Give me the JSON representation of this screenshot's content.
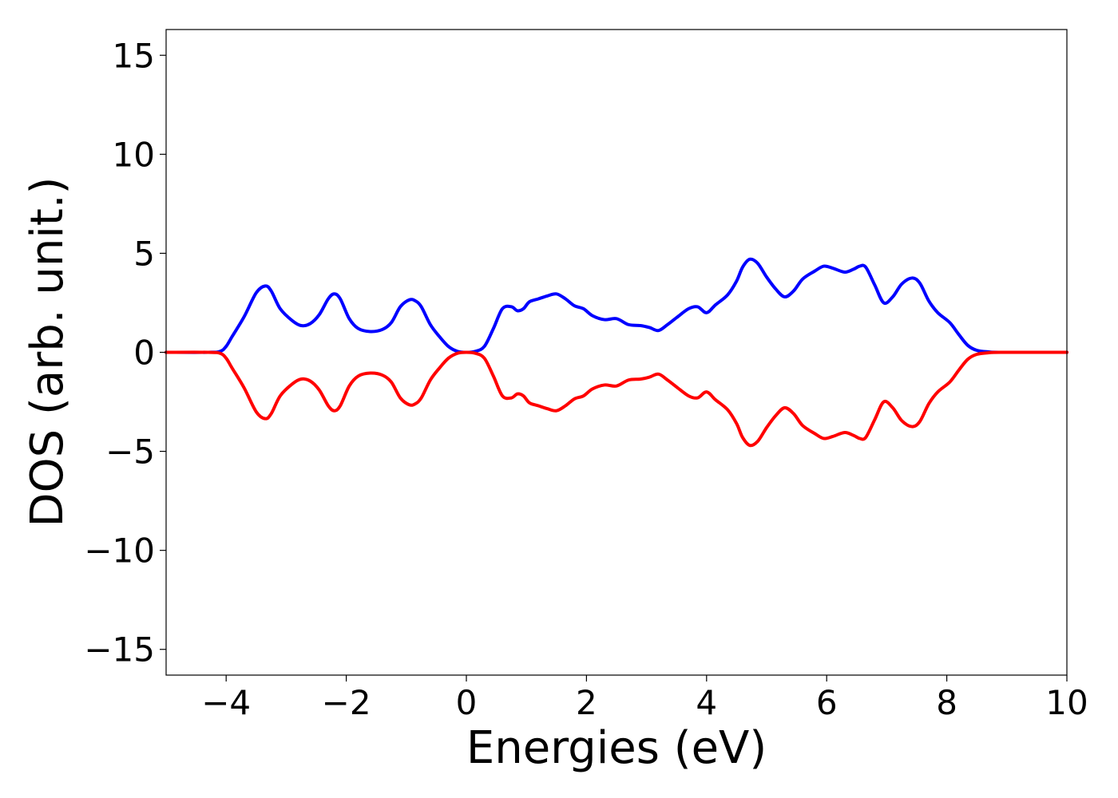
{
  "chart_data": {
    "type": "line",
    "title": "",
    "xlabel": "Energies (eV)",
    "ylabel": "DOS (arb. unit.)",
    "xlim": [
      -5,
      10
    ],
    "ylim": [
      -16.3,
      16.3
    ],
    "xticks": [
      -4,
      -2,
      0,
      2,
      4,
      6,
      8,
      10
    ],
    "xtick_labels": [
      "−4",
      "−2",
      "0",
      "2",
      "4",
      "6",
      "8",
      "10"
    ],
    "yticks": [
      15,
      10,
      5,
      0,
      -5,
      -10,
      -15
    ],
    "ytick_labels": [
      "15",
      "10",
      "5",
      "0",
      "−5",
      "−10",
      "−15"
    ],
    "grid": false,
    "legend": "none",
    "series": [
      {
        "color": "#0000ff",
        "x": [
          -5.0,
          -4.3,
          -4.1,
          -4.0,
          -3.9,
          -3.7,
          -3.5,
          -3.35,
          -3.25,
          -3.1,
          -2.9,
          -2.75,
          -2.6,
          -2.45,
          -2.3,
          -2.2,
          -2.1,
          -1.95,
          -1.8,
          -1.6,
          -1.4,
          -1.25,
          -1.1,
          -0.95,
          -0.85,
          -0.75,
          -0.6,
          -0.45,
          -0.3,
          -0.15,
          0.0,
          0.15,
          0.3,
          0.45,
          0.6,
          0.75,
          0.85,
          0.95,
          1.05,
          1.2,
          1.35,
          1.5,
          1.65,
          1.8,
          1.95,
          2.1,
          2.3,
          2.5,
          2.7,
          2.9,
          3.05,
          3.2,
          3.35,
          3.5,
          3.7,
          3.85,
          4.0,
          4.15,
          4.35,
          4.5,
          4.6,
          4.72,
          4.85,
          5.0,
          5.15,
          5.3,
          5.45,
          5.6,
          5.8,
          5.95,
          6.1,
          6.3,
          6.45,
          6.55,
          6.65,
          6.8,
          6.95,
          7.1,
          7.25,
          7.42,
          7.55,
          7.7,
          7.85,
          8.05,
          8.2,
          8.35,
          8.5,
          8.7,
          8.9,
          10.0
        ],
        "values": [
          0.0,
          0.0,
          0.05,
          0.3,
          0.8,
          1.8,
          3.0,
          3.35,
          3.1,
          2.2,
          1.6,
          1.35,
          1.45,
          1.9,
          2.7,
          2.95,
          2.7,
          1.7,
          1.2,
          1.05,
          1.15,
          1.5,
          2.3,
          2.65,
          2.6,
          2.3,
          1.4,
          0.8,
          0.3,
          0.05,
          0.0,
          0.05,
          0.3,
          1.2,
          2.2,
          2.3,
          2.1,
          2.2,
          2.55,
          2.7,
          2.85,
          2.95,
          2.7,
          2.35,
          2.2,
          1.85,
          1.65,
          1.7,
          1.4,
          1.35,
          1.25,
          1.1,
          1.4,
          1.75,
          2.2,
          2.3,
          2.0,
          2.4,
          2.9,
          3.6,
          4.3,
          4.7,
          4.5,
          3.8,
          3.2,
          2.8,
          3.1,
          3.7,
          4.1,
          4.35,
          4.25,
          4.05,
          4.2,
          4.35,
          4.3,
          3.4,
          2.5,
          2.8,
          3.45,
          3.75,
          3.5,
          2.6,
          2.0,
          1.5,
          0.9,
          0.35,
          0.1,
          0.02,
          0.0,
          0.0
        ]
      },
      {
        "color": "#ff0000",
        "x": [
          -5.0,
          -4.3,
          -4.1,
          -4.0,
          -3.9,
          -3.7,
          -3.5,
          -3.35,
          -3.25,
          -3.1,
          -2.9,
          -2.75,
          -2.6,
          -2.45,
          -2.3,
          -2.2,
          -2.1,
          -1.95,
          -1.8,
          -1.6,
          -1.4,
          -1.25,
          -1.1,
          -0.95,
          -0.85,
          -0.75,
          -0.6,
          -0.45,
          -0.3,
          -0.15,
          0.0,
          0.15,
          0.3,
          0.45,
          0.6,
          0.75,
          0.85,
          0.95,
          1.05,
          1.2,
          1.35,
          1.5,
          1.65,
          1.8,
          1.95,
          2.1,
          2.3,
          2.5,
          2.7,
          2.9,
          3.05,
          3.2,
          3.35,
          3.5,
          3.7,
          3.85,
          4.0,
          4.15,
          4.35,
          4.5,
          4.6,
          4.72,
          4.85,
          5.0,
          5.15,
          5.3,
          5.45,
          5.6,
          5.8,
          5.95,
          6.1,
          6.3,
          6.45,
          6.55,
          6.65,
          6.8,
          6.95,
          7.1,
          7.25,
          7.42,
          7.55,
          7.7,
          7.85,
          8.05,
          8.2,
          8.35,
          8.5,
          8.7,
          8.9,
          10.0
        ],
        "values": [
          0.0,
          0.0,
          -0.05,
          -0.3,
          -0.8,
          -1.8,
          -3.0,
          -3.35,
          -3.1,
          -2.2,
          -1.6,
          -1.35,
          -1.45,
          -1.9,
          -2.7,
          -2.95,
          -2.7,
          -1.7,
          -1.2,
          -1.05,
          -1.15,
          -1.5,
          -2.3,
          -2.65,
          -2.6,
          -2.3,
          -1.4,
          -0.8,
          -0.3,
          -0.05,
          0.0,
          -0.05,
          -0.3,
          -1.2,
          -2.2,
          -2.3,
          -2.1,
          -2.2,
          -2.55,
          -2.7,
          -2.85,
          -2.95,
          -2.7,
          -2.35,
          -2.2,
          -1.85,
          -1.65,
          -1.7,
          -1.4,
          -1.35,
          -1.25,
          -1.1,
          -1.4,
          -1.75,
          -2.2,
          -2.3,
          -2.0,
          -2.4,
          -2.9,
          -3.6,
          -4.3,
          -4.7,
          -4.5,
          -3.8,
          -3.2,
          -2.8,
          -3.1,
          -3.7,
          -4.1,
          -4.35,
          -4.25,
          -4.05,
          -4.2,
          -4.35,
          -4.3,
          -3.4,
          -2.5,
          -2.8,
          -3.45,
          -3.75,
          -3.5,
          -2.6,
          -2.0,
          -1.5,
          -0.9,
          -0.35,
          -0.1,
          -0.02,
          0.0,
          0.0
        ]
      }
    ]
  }
}
